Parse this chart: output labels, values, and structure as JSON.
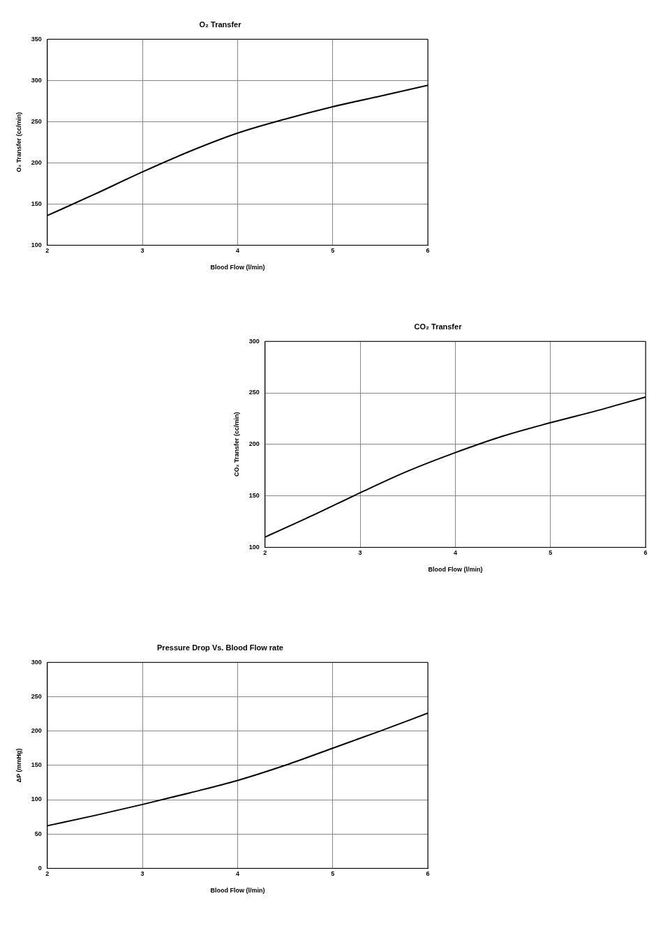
{
  "chart_data": [
    {
      "type": "line",
      "title": "O₂ Transfer",
      "xlabel": "Blood Flow (l/min)",
      "ylabel": "O₂ Transfer (cc/min)",
      "x": [
        2,
        2.5,
        3,
        3.5,
        4,
        4.5,
        5,
        5.5,
        6
      ],
      "series": [
        {
          "color": "#000000",
          "values": [
            136,
            162,
            189,
            214,
            236,
            253,
            268,
            281,
            294
          ]
        }
      ],
      "xlim": [
        2,
        6
      ],
      "xticks": [
        2,
        3,
        4,
        5,
        6
      ],
      "ylim": [
        100,
        350
      ],
      "yticks": [
        100,
        150,
        200,
        250,
        300,
        350
      ],
      "grid": true,
      "legend": false,
      "marker": "none",
      "line_style": "solid"
    },
    {
      "type": "line",
      "title": "CO₂ Transfer",
      "xlabel": "Blood Flow (l/min)",
      "ylabel": "CO₂ Transfer (cc/min)",
      "x": [
        2,
        2.5,
        3,
        3.5,
        4,
        4.5,
        5,
        5.5,
        6
      ],
      "series": [
        {
          "color": "#000000",
          "values": [
            110,
            131,
            153,
            174,
            192,
            208,
            221,
            233,
            246
          ]
        }
      ],
      "xlim": [
        2,
        6
      ],
      "xticks": [
        2,
        3,
        4,
        5,
        6
      ],
      "ylim": [
        100,
        300
      ],
      "yticks": [
        100,
        150,
        200,
        250,
        300
      ],
      "grid": true,
      "legend": false,
      "marker": "none",
      "line_style": "solid"
    },
    {
      "type": "line",
      "title": "Pressure Drop Vs. Blood Flow rate",
      "xlabel": "Blood Flow (l/min)",
      "ylabel": "ΔP (mmHg)",
      "x": [
        2,
        2.5,
        3,
        3.5,
        4,
        4.5,
        5,
        5.5,
        6
      ],
      "series": [
        {
          "color": "#000000",
          "values": [
            62,
            77,
            93,
            110,
            128,
            150,
            175,
            200,
            226
          ]
        }
      ],
      "xlim": [
        2,
        6
      ],
      "xticks": [
        2,
        3,
        4,
        5,
        6
      ],
      "ylim": [
        0,
        300
      ],
      "yticks": [
        0,
        50,
        100,
        150,
        200,
        250,
        300
      ],
      "grid": true,
      "legend": false,
      "marker": "none",
      "line_style": "solid"
    }
  ]
}
